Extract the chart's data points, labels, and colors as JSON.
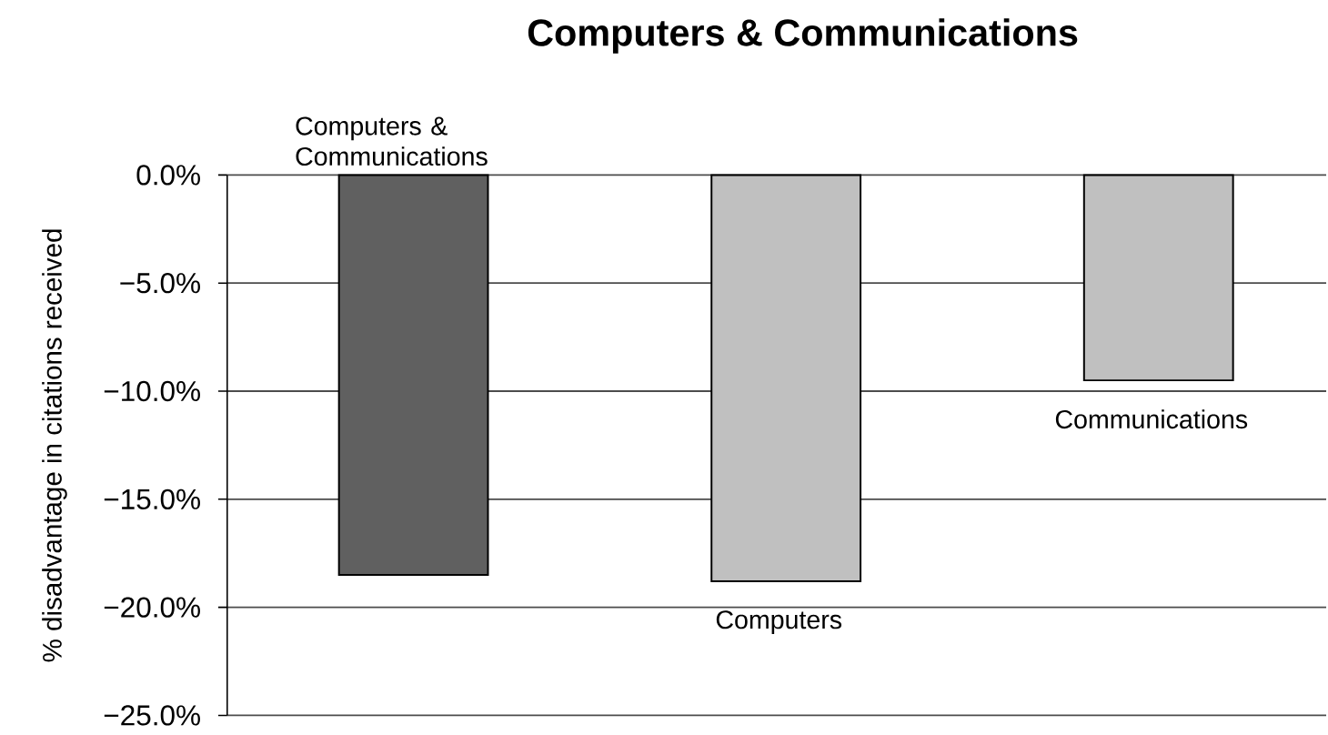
{
  "chart_data": {
    "type": "bar",
    "title": "Computers & Communications",
    "ylabel": "% disadvantage in citations received",
    "categories": [
      "Computers & Communications",
      "Computers",
      "Communications"
    ],
    "values": [
      -18.5,
      -18.8,
      -9.5
    ],
    "colors": [
      "#606060",
      "#c0c0c0",
      "#c0c0c0"
    ],
    "ylim": [
      -25,
      0
    ],
    "yticks": [
      {
        "value": -25,
        "label": "−25.0%"
      },
      {
        "value": -20,
        "label": "−20.0%"
      },
      {
        "value": -15,
        "label": "−15.0%"
      },
      {
        "value": -10,
        "label": "−10.0%"
      },
      {
        "value": -5,
        "label": "−5.0%"
      },
      {
        "value": 0,
        "label": "0.0%"
      }
    ],
    "grid": "y"
  }
}
